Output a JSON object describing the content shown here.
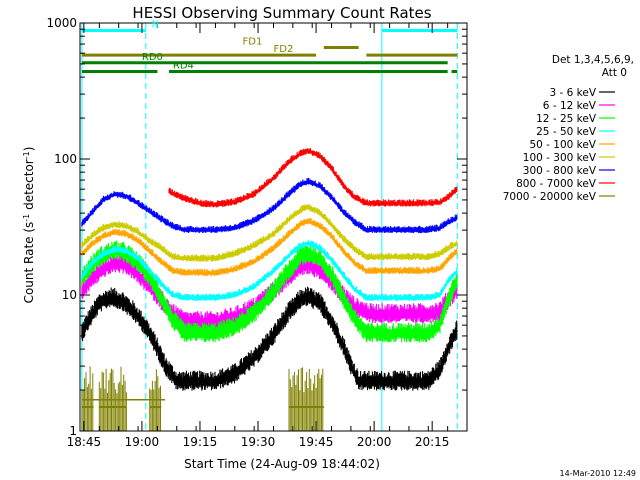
{
  "chart_data": {
    "type": "line",
    "title": "HESSI Observing Summary Count Rates",
    "xlabel": "Start Time (24-Aug-09 18:44:02)",
    "ylabel_prefix": "Count Rate (s",
    "ylabel_sup1": "-1",
    "ylabel_mid": " detector",
    "ylabel_sup2": "-1",
    "ylabel_suffix": ")",
    "y_scale": "log",
    "ylim": [
      1,
      1000
    ],
    "xlim_minutes": [
      0,
      100
    ],
    "x_ticks": [
      {
        "m": 1,
        "label": "18:45"
      },
      {
        "m": 16,
        "label": "19:00"
      },
      {
        "m": 31,
        "label": "19:15"
      },
      {
        "m": 46,
        "label": "19:30"
      },
      {
        "m": 61,
        "label": "19:45"
      },
      {
        "m": 76,
        "label": "20:00"
      },
      {
        "m": 91,
        "label": "20:15"
      }
    ],
    "y_ticks": [
      {
        "v": 1,
        "label": "1"
      },
      {
        "v": 10,
        "label": "10"
      },
      {
        "v": 100,
        "label": "100"
      },
      {
        "v": 1000,
        "label": "1000"
      }
    ],
    "legend_header": [
      "Det 1,3,4,5,6,9,",
      "Att 0"
    ],
    "legend_position": "right",
    "series": [
      {
        "name": "3 - 6 keV",
        "color": "#000000",
        "ep": [
          [
            0.5,
            5.2
          ],
          [
            2,
            6.3
          ],
          [
            5,
            8.6
          ],
          [
            8,
            9.5
          ],
          [
            11,
            8.9
          ],
          [
            14,
            7.4
          ],
          [
            17,
            5.8
          ],
          [
            20,
            4
          ],
          [
            22,
            3
          ],
          [
            25,
            2.3
          ],
          [
            35,
            2.3
          ],
          [
            40,
            2.6
          ],
          [
            45,
            3.4
          ],
          [
            50,
            5
          ],
          [
            54,
            7.4
          ],
          [
            57,
            9.2
          ],
          [
            59,
            9.6
          ],
          [
            62,
            8.6
          ],
          [
            65,
            6.3
          ],
          [
            68,
            4.2
          ],
          [
            70,
            3
          ],
          [
            72,
            2.3
          ],
          [
            90,
            2.3
          ],
          [
            93,
            2.8
          ],
          [
            95,
            4
          ],
          [
            97.5,
            5.5
          ]
        ]
      },
      {
        "name": "6 - 12 keV",
        "color": "#ff00ff",
        "ep": [
          [
            0.5,
            10.5
          ],
          [
            3,
            13
          ],
          [
            6,
            15.5
          ],
          [
            9,
            17
          ],
          [
            12,
            16.5
          ],
          [
            15,
            14
          ],
          [
            18,
            11.5
          ],
          [
            21,
            9
          ],
          [
            24,
            7.2
          ],
          [
            27,
            6.3
          ],
          [
            35,
            6.3
          ],
          [
            40,
            6.8
          ],
          [
            45,
            8
          ],
          [
            50,
            10.5
          ],
          [
            54,
            13.5
          ],
          [
            57,
            16
          ],
          [
            59,
            16.5
          ],
          [
            62,
            15
          ],
          [
            65,
            12.5
          ],
          [
            68,
            9.8
          ],
          [
            71,
            8
          ],
          [
            75,
            7.2
          ],
          [
            90,
            7.2
          ],
          [
            93,
            7.5
          ],
          [
            95,
            9
          ],
          [
            97.5,
            11
          ]
        ]
      },
      {
        "name": "12 - 25 keV",
        "color": "#00ff00",
        "ep": [
          [
            0.5,
            13
          ],
          [
            3,
            16.5
          ],
          [
            6,
            19.5
          ],
          [
            9,
            21
          ],
          [
            12,
            20
          ],
          [
            15,
            17
          ],
          [
            18,
            13.5
          ],
          [
            21,
            9.5
          ],
          [
            24,
            6.5
          ],
          [
            27,
            5.2
          ],
          [
            35,
            5.2
          ],
          [
            40,
            5.8
          ],
          [
            45,
            7.2
          ],
          [
            50,
            10.5
          ],
          [
            54,
            15
          ],
          [
            57,
            19
          ],
          [
            59,
            20
          ],
          [
            62,
            18
          ],
          [
            65,
            14
          ],
          [
            68,
            9.5
          ],
          [
            71,
            6.5
          ],
          [
            74,
            5.2
          ],
          [
            90,
            5.2
          ],
          [
            93,
            6
          ],
          [
            95,
            9
          ],
          [
            97.5,
            13
          ]
        ]
      },
      {
        "name": "25 - 50 keV",
        "color": "#00ffff",
        "ep": [
          [
            0.5,
            13.5
          ],
          [
            3,
            17
          ],
          [
            6,
            20
          ],
          [
            9,
            21.5
          ],
          [
            12,
            21
          ],
          [
            15,
            18.5
          ],
          [
            18,
            15
          ],
          [
            21,
            12
          ],
          [
            24,
            10
          ],
          [
            27,
            9.5
          ],
          [
            35,
            9.5
          ],
          [
            40,
            10
          ],
          [
            45,
            11.5
          ],
          [
            50,
            15
          ],
          [
            54,
            19.5
          ],
          [
            57,
            23
          ],
          [
            59,
            24
          ],
          [
            62,
            22
          ],
          [
            65,
            18
          ],
          [
            68,
            14
          ],
          [
            71,
            11
          ],
          [
            74,
            9.5
          ],
          [
            90,
            9.5
          ],
          [
            93,
            10
          ],
          [
            95,
            12.5
          ],
          [
            97.5,
            15
          ]
        ]
      },
      {
        "name": "50 - 100 keV",
        "color": "#ffa500",
        "ep": [
          [
            0.5,
            20
          ],
          [
            3,
            23.5
          ],
          [
            6,
            27
          ],
          [
            9,
            29
          ],
          [
            12,
            28
          ],
          [
            15,
            25
          ],
          [
            18,
            21
          ],
          [
            21,
            17.5
          ],
          [
            24,
            15
          ],
          [
            27,
            14.5
          ],
          [
            35,
            14.5
          ],
          [
            40,
            15.5
          ],
          [
            45,
            17.5
          ],
          [
            50,
            22
          ],
          [
            54,
            28
          ],
          [
            57,
            33
          ],
          [
            59,
            35
          ],
          [
            62,
            32
          ],
          [
            65,
            27
          ],
          [
            68,
            21
          ],
          [
            71,
            17
          ],
          [
            74,
            15
          ],
          [
            90,
            15
          ],
          [
            93,
            15.5
          ],
          [
            95,
            18
          ],
          [
            97.5,
            21
          ]
        ]
      },
      {
        "name": "100 - 300 keV",
        "color": "#cccc00",
        "ep": [
          [
            0.5,
            23
          ],
          [
            3,
            27
          ],
          [
            6,
            31
          ],
          [
            9,
            33
          ],
          [
            12,
            32
          ],
          [
            15,
            29
          ],
          [
            18,
            25
          ],
          [
            21,
            22
          ],
          [
            24,
            19
          ],
          [
            27,
            18.5
          ],
          [
            35,
            18.5
          ],
          [
            40,
            20
          ],
          [
            45,
            23
          ],
          [
            50,
            28
          ],
          [
            54,
            36
          ],
          [
            57,
            42
          ],
          [
            59,
            44
          ],
          [
            62,
            40
          ],
          [
            65,
            33
          ],
          [
            68,
            26
          ],
          [
            71,
            21.5
          ],
          [
            74,
            19
          ],
          [
            90,
            19
          ],
          [
            93,
            20
          ],
          [
            95,
            22
          ],
          [
            97.5,
            24
          ]
        ]
      },
      {
        "name": "300 - 800 keV",
        "color": "#0000ff",
        "ep": [
          [
            0.5,
            33
          ],
          [
            3,
            40
          ],
          [
            6,
            50
          ],
          [
            9,
            55
          ],
          [
            12,
            53
          ],
          [
            15,
            47
          ],
          [
            18,
            41
          ],
          [
            21,
            36
          ],
          [
            24,
            32
          ],
          [
            27,
            30
          ],
          [
            35,
            30
          ],
          [
            40,
            31
          ],
          [
            45,
            35
          ],
          [
            50,
            43
          ],
          [
            54,
            55
          ],
          [
            57,
            65
          ],
          [
            59,
            68
          ],
          [
            62,
            63
          ],
          [
            65,
            52
          ],
          [
            68,
            41
          ],
          [
            71,
            34
          ],
          [
            74,
            30
          ],
          [
            90,
            30
          ],
          [
            93,
            31
          ],
          [
            95,
            34
          ],
          [
            97.5,
            37
          ]
        ]
      },
      {
        "name": "800 - 7000 keV",
        "color": "#ff0000",
        "ep": [
          [
            23,
            58
          ],
          [
            25,
            54
          ],
          [
            28,
            50
          ],
          [
            31,
            47
          ],
          [
            35,
            46
          ],
          [
            40,
            48
          ],
          [
            45,
            55
          ],
          [
            50,
            72
          ],
          [
            54,
            95
          ],
          [
            57,
            110
          ],
          [
            59,
            115
          ],
          [
            62,
            105
          ],
          [
            65,
            85
          ],
          [
            68,
            64
          ],
          [
            71,
            52
          ],
          [
            74,
            47
          ],
          [
            90,
            47
          ],
          [
            93,
            48
          ],
          [
            95,
            52
          ],
          [
            97.5,
            60
          ]
        ]
      },
      {
        "name": "7000 - 20000 keV",
        "color": "#808000",
        "ep": [
          [
            0.5,
            1.7
          ],
          [
            5,
            1.7
          ],
          [
            10,
            1.7
          ],
          [
            15,
            1.7
          ],
          [
            20,
            1.7
          ],
          [
            22,
            1.7
          ]
        ]
      }
    ],
    "attenuator_flag": {
      "value": 1.5,
      "ranges": [
        [
          0.5,
          3.5
        ],
        [
          5,
          12
        ],
        [
          18,
          21
        ],
        [
          54,
          63
        ]
      ]
    },
    "vertical_markers_cyan_solid": [
      0.5,
      78
    ],
    "vertical_markers_cyan_dashed": [
      17,
      97.5
    ],
    "flag_bars": [
      {
        "label": "N",
        "color": "#00ffff",
        "y": 880,
        "ranges": [
          [
            0.5,
            17
          ],
          [
            78,
            97.5
          ]
        ],
        "label_at": 18.5
      },
      {
        "label": "FD1",
        "color": "#808000",
        "y": 660,
        "ranges": [
          [
            63,
            72
          ]
        ],
        "label_at": 42
      },
      {
        "label": "FD2",
        "color": "#808000",
        "y": 580,
        "ranges": [
          [
            0.5,
            61
          ],
          [
            74,
            97.5
          ]
        ],
        "label_at": 50
      },
      {
        "label": "RD0",
        "color": "#008000",
        "y": 510,
        "ranges": [
          [
            0.5,
            95
          ]
        ],
        "label_at": 16
      },
      {
        "label": "RD4",
        "color": "#008000",
        "y": 440,
        "ranges": [
          [
            0.5,
            20
          ],
          [
            23,
            95
          ],
          [
            96,
            97.5
          ]
        ],
        "label_at": 24
      }
    ]
  },
  "date_stamp": "14-Mar-2010 12:49"
}
